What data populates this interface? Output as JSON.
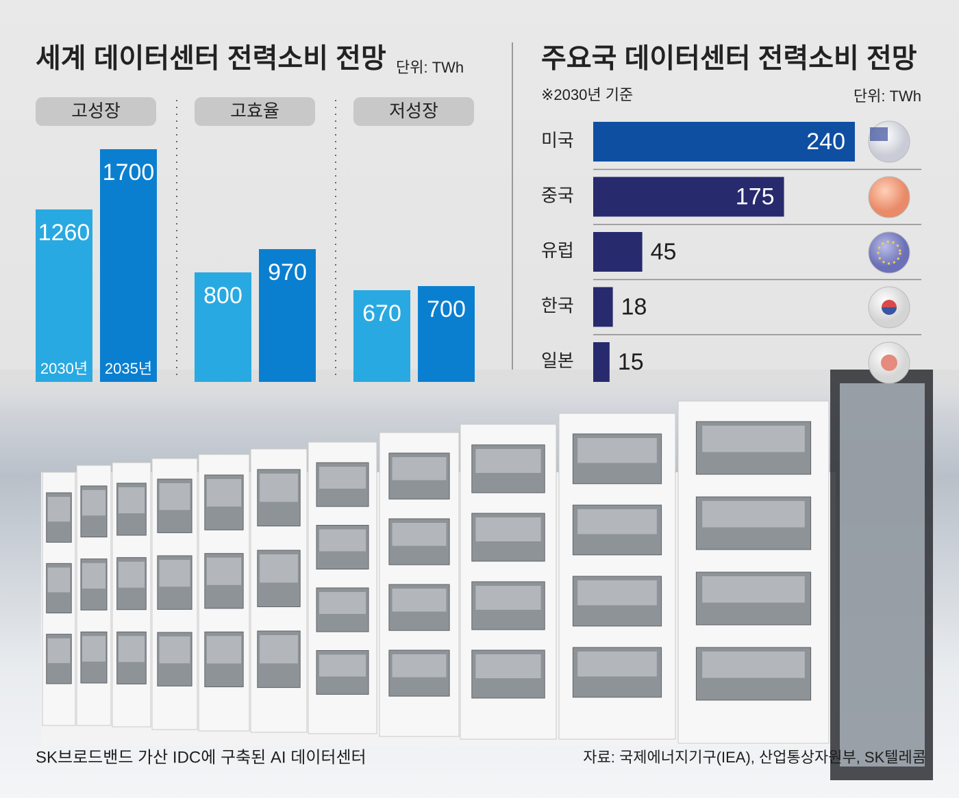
{
  "chart_data": [
    {
      "type": "bar",
      "title": "세계 데이터센터 전력소비 전망",
      "unit": "단위: TWh",
      "categories": [
        "고성장",
        "고효율",
        "저성장"
      ],
      "series": [
        {
          "name": "2030년",
          "color": "#29a9e1",
          "values": [
            1260,
            800,
            670
          ]
        },
        {
          "name": "2035년",
          "color": "#0a7fd0",
          "values": [
            1700,
            970,
            700
          ]
        }
      ]
    },
    {
      "type": "hbar",
      "title": "주요국 데이터센터 전력소비 전망",
      "subtitle": "※2030년 기준",
      "unit": "단위: TWh",
      "categories": [
        "미국",
        "중국",
        "유럽",
        "한국",
        "일본"
      ],
      "values": [
        240,
        175,
        45,
        18,
        15
      ],
      "colors": [
        "#0f4fa2",
        "#272a6d",
        "#272a6d",
        "#272a6d",
        "#272a6d"
      ]
    }
  ],
  "caption": "SK브로드밴드 가산 IDC에 구축된 AI 데이터센터",
  "source": "자료: 국제에너지기구(IEA), 산업통상자원부, SK텔레콤"
}
